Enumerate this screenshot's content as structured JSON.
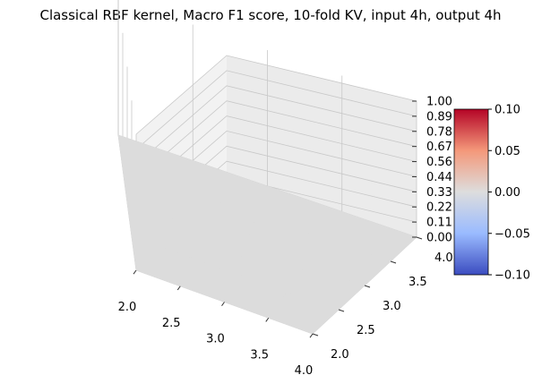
{
  "chart_data": {
    "type": "surface",
    "title": "Classical RBF kernel, Macro F1 score, 10-fold KV, input 4h, output 4h",
    "x": [
      2.0,
      2.5,
      3.0,
      3.5,
      4.0
    ],
    "y": [
      2.0,
      2.5,
      3.0,
      3.5,
      4.0
    ],
    "z": [
      [
        0,
        0,
        0,
        0,
        0
      ],
      [
        0,
        0,
        0,
        0,
        0
      ],
      [
        0,
        0,
        0,
        0,
        0
      ],
      [
        0,
        0,
        0,
        0,
        0
      ],
      [
        0,
        0,
        0,
        0,
        0
      ]
    ],
    "xlim": [
      2.0,
      4.0
    ],
    "ylim": [
      2.0,
      4.0
    ],
    "zlim": [
      0.0,
      1.0
    ],
    "x_ticks": [
      "2.0",
      "2.5",
      "3.0",
      "3.5",
      "4.0"
    ],
    "y_ticks": [
      "2.0",
      "2.5",
      "3.0",
      "3.5",
      "4.0"
    ],
    "z_ticks": [
      "0.00",
      "0.11",
      "0.22",
      "0.33",
      "0.44",
      "0.56",
      "0.67",
      "0.78",
      "0.89",
      "1.00"
    ],
    "grid": true,
    "colormap": "coolwarm",
    "surface_color": "#dcdcdc",
    "colorbar": {
      "range": [
        -0.1,
        0.1
      ],
      "ticks": [
        "0.10",
        "0.05",
        "0.00",
        "−0.05",
        "−0.10"
      ],
      "colors": [
        "#b40426",
        "#f4987a",
        "#dddddd",
        "#9abbff",
        "#3b4cc0"
      ]
    }
  }
}
